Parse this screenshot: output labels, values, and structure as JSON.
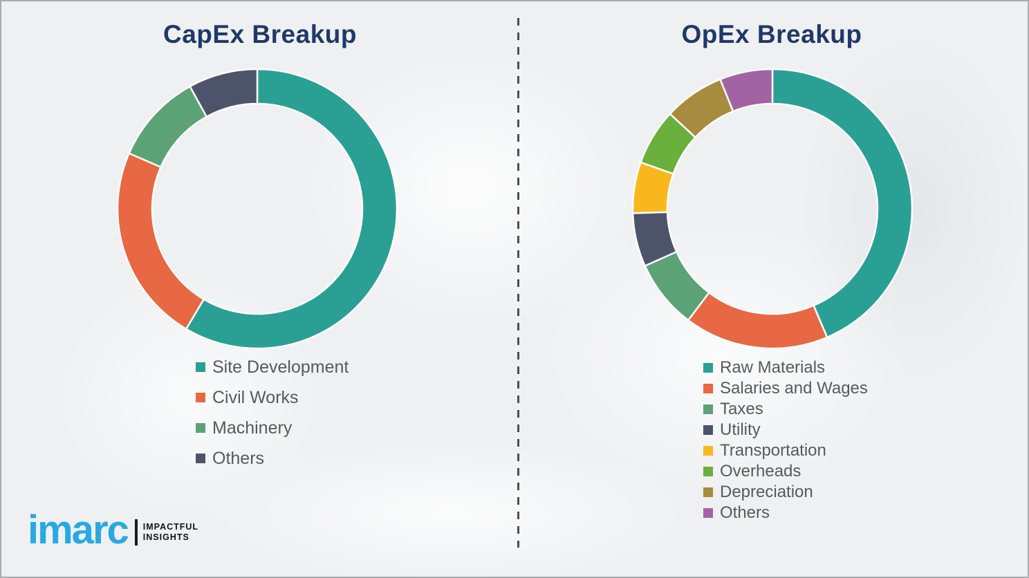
{
  "styles": {
    "background": "#eff0f2",
    "title_color": "#1f3968",
    "legend_text_color": "#595959",
    "divider_color": "#4d4d4d",
    "brand_color": "#29a9e1"
  },
  "logo": {
    "brand": "imarc",
    "tagline_line1": "IMPACTFUL",
    "tagline_line2": "INSIGHTS"
  },
  "chart_data": [
    {
      "type": "pie",
      "variant": "donut",
      "title": "CapEx Breakup",
      "categories": [
        "Site Development",
        "Civil Works",
        "Machinery",
        "Others"
      ],
      "values": [
        58.5,
        23.0,
        10.5,
        8.0
      ],
      "unit": "percent-estimated",
      "colors": [
        "#2aa095",
        "#e76843",
        "#5ba377",
        "#4d5368"
      ],
      "start_angle_deg": 0,
      "direction": "clockwise",
      "legend_position": "below-left"
    },
    {
      "type": "pie",
      "variant": "donut",
      "title": "OpEx Breakup",
      "categories": [
        "Raw Materials",
        "Salaries and Wages",
        "Taxes",
        "Utility",
        "Transportation",
        "Overheads",
        "Depreciation",
        "Others"
      ],
      "values": [
        43.6,
        16.7,
        8.0,
        6.2,
        5.9,
        6.5,
        7.0,
        6.1
      ],
      "unit": "percent-estimated",
      "colors": [
        "#2aa095",
        "#e76843",
        "#5ba377",
        "#4d5368",
        "#f8b81d",
        "#69b03c",
        "#a78b3f",
        "#a263a5"
      ],
      "start_angle_deg": 0,
      "direction": "clockwise",
      "legend_position": "below-left"
    }
  ]
}
